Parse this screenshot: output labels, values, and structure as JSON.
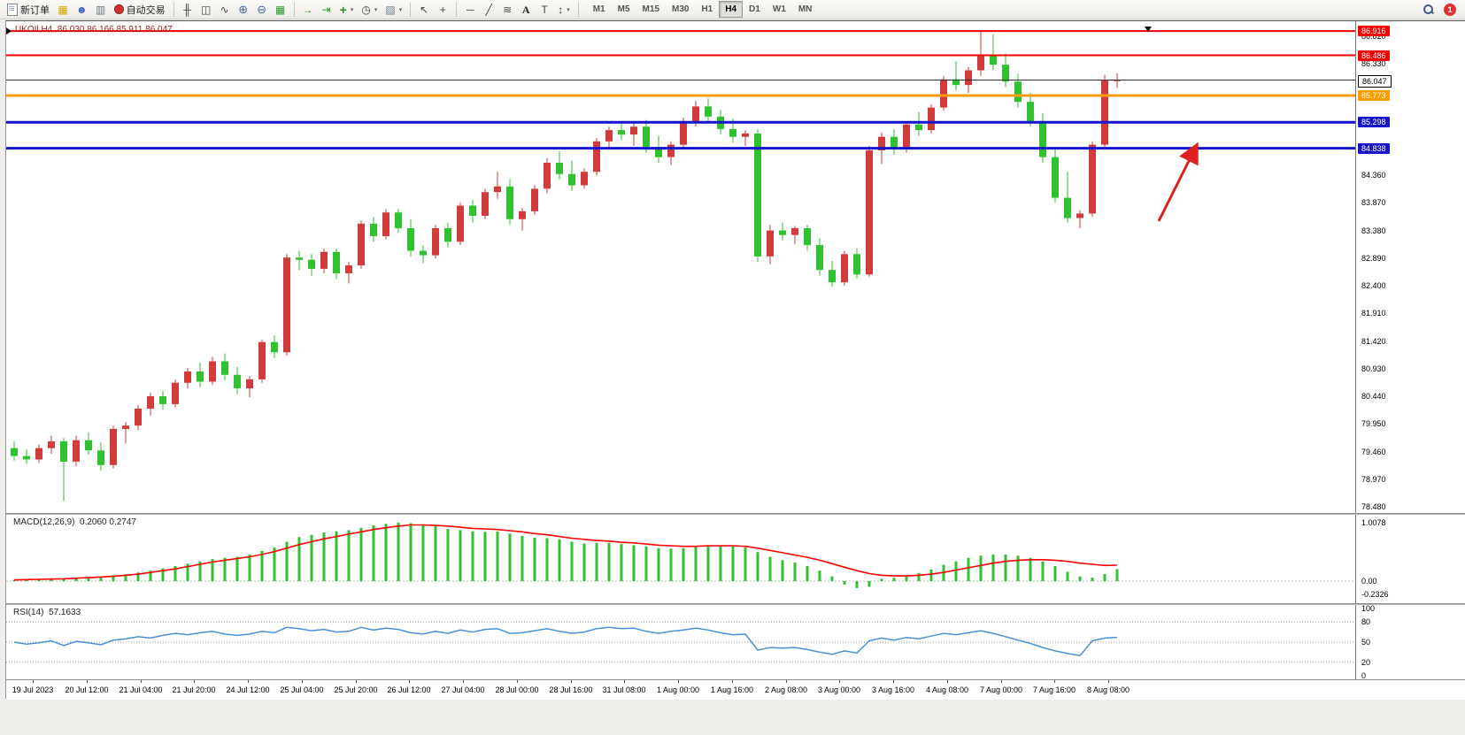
{
  "toolbar": {
    "new_order_label": "新订单",
    "autotrading_label": "自动交易",
    "notification_count": "1",
    "timeframes": [
      {
        "label": "M1",
        "active": false
      },
      {
        "label": "M5",
        "active": false
      },
      {
        "label": "M15",
        "active": false
      },
      {
        "label": "M30",
        "active": false
      },
      {
        "label": "H1",
        "active": false
      },
      {
        "label": "H4",
        "active": true
      },
      {
        "label": "D1",
        "active": false
      },
      {
        "label": "W1",
        "active": false
      },
      {
        "label": "MN",
        "active": false
      }
    ],
    "icons": {
      "chart_stack": "▦",
      "market_watch": "☻",
      "data_window": "▥",
      "bar_chart": "╫",
      "candle_chart": "◫",
      "line_chart": "∿",
      "zoom_in": "⊕",
      "zoom_out": "⊖",
      "tile_windows": "▦",
      "auto_scroll": "→",
      "chart_shift": "⇥",
      "add_indicator": "+",
      "periods": "◷",
      "templates": "▧",
      "cursor": "↖",
      "crosshair": "+",
      "hline_tool": "─",
      "trendline_tool": "╱",
      "fibonacci_tool": "≋",
      "text_tool": "A",
      "label_tool": "T",
      "arrows_tool": "↕",
      "caret": "▾"
    }
  },
  "chart": {
    "symbol_label": "UKOIl,H4",
    "ohlc_label": "86.030 86.166 85.911 86.047",
    "colors": {
      "bull": "#d23b3b",
      "bear": "#2fc12f",
      "line_red": "#f50000",
      "line_blue": "#1414cc",
      "line_orange": "#ff9c00",
      "bid": "#333333",
      "macd_hist": "#2fc12f",
      "macd_signal": "#ff0000",
      "rsi": "#4a90d9",
      "annotation": "#e02020"
    }
  },
  "chart_data": [
    {
      "type": "candlestick",
      "symbol": "UKOIl",
      "timeframe": "H4",
      "current_ohlc": {
        "open": "86.030",
        "high": "86.166",
        "low": "85.911",
        "close": "86.047"
      },
      "ylim": [
        78.37,
        87.09
      ],
      "hlines": [
        {
          "price": 86.916,
          "color": "#f50000",
          "width": 2,
          "badge_bg": "#f50000",
          "badge_fg": "#ffffff"
        },
        {
          "price": 86.486,
          "color": "#f50000",
          "width": 2,
          "badge_bg": "#f50000",
          "badge_fg": "#ffffff"
        },
        {
          "price": 86.047,
          "color": "#333333",
          "width": 1,
          "badge_bg": "#ffffff",
          "badge_fg": "#000000"
        },
        {
          "price": 85.773,
          "color": "#ff9c00",
          "width": 3,
          "badge_bg": "#ff9c00",
          "badge_fg": "#ffffff"
        },
        {
          "price": 85.298,
          "color": "#1414cc",
          "width": 3,
          "badge_bg": "#1414cc",
          "badge_fg": "#ffffff"
        },
        {
          "price": 84.838,
          "color": "#1414cc",
          "width": 3,
          "badge_bg": "#1414cc",
          "badge_fg": "#ffffff"
        }
      ],
      "y_ticks": [
        86.82,
        86.33,
        84.36,
        83.87,
        83.38,
        82.89,
        82.4,
        81.91,
        81.42,
        80.93,
        80.44,
        79.95,
        79.46,
        78.97,
        78.48
      ],
      "x_ticks": [
        "19 Jul 2023",
        "20 Jul 12:00",
        "21 Jul 04:00",
        "21 Jul 20:00",
        "24 Jul 12:00",
        "25 Jul 04:00",
        "25 Jul 20:00",
        "26 Jul 12:00",
        "27 Jul 04:00",
        "28 Jul 00:00",
        "28 Jul 16:00",
        "31 Jul 08:00",
        "1 Aug 00:00",
        "1 Aug 16:00",
        "2 Aug 08:00",
        "3 Aug 00:00",
        "3 Aug 16:00",
        "4 Aug 08:00",
        "7 Aug 00:00",
        "7 Aug 16:00",
        "8 Aug 08:00"
      ],
      "candles": [
        [
          79.52,
          79.64,
          79.3,
          79.38
        ],
        [
          79.38,
          79.5,
          79.24,
          79.32
        ],
        [
          79.32,
          79.58,
          79.26,
          79.52
        ],
        [
          79.52,
          79.74,
          79.42,
          79.64
        ],
        [
          79.64,
          79.7,
          78.58,
          79.28
        ],
        [
          79.28,
          79.74,
          79.2,
          79.66
        ],
        [
          79.66,
          79.8,
          79.4,
          79.48
        ],
        [
          79.48,
          79.62,
          79.12,
          79.22
        ],
        [
          79.22,
          79.92,
          79.16,
          79.86
        ],
        [
          79.86,
          79.98,
          79.6,
          79.92
        ],
        [
          79.92,
          80.28,
          79.84,
          80.22
        ],
        [
          80.22,
          80.5,
          80.1,
          80.44
        ],
        [
          80.44,
          80.54,
          80.2,
          80.3
        ],
        [
          80.3,
          80.74,
          80.24,
          80.68
        ],
        [
          80.68,
          80.94,
          80.58,
          80.88
        ],
        [
          80.88,
          81.04,
          80.6,
          80.7
        ],
        [
          80.7,
          81.14,
          80.64,
          81.06
        ],
        [
          81.06,
          81.2,
          80.72,
          80.82
        ],
        [
          80.82,
          80.96,
          80.48,
          80.58
        ],
        [
          80.58,
          80.8,
          80.42,
          80.74
        ],
        [
          80.74,
          81.44,
          80.68,
          81.4
        ],
        [
          81.4,
          81.52,
          81.12,
          81.22
        ],
        [
          81.22,
          82.96,
          81.16,
          82.9
        ],
        [
          82.9,
          83.02,
          82.68,
          82.86
        ],
        [
          82.86,
          82.96,
          82.58,
          82.7
        ],
        [
          82.7,
          83.06,
          82.62,
          83.0
        ],
        [
          83.0,
          83.06,
          82.52,
          82.62
        ],
        [
          82.62,
          82.82,
          82.44,
          82.76
        ],
        [
          82.76,
          83.56,
          82.7,
          83.5
        ],
        [
          83.5,
          83.62,
          83.18,
          83.28
        ],
        [
          83.28,
          83.76,
          83.22,
          83.7
        ],
        [
          83.7,
          83.76,
          83.34,
          83.42
        ],
        [
          83.42,
          83.58,
          82.92,
          83.02
        ],
        [
          83.02,
          83.12,
          82.8,
          82.94
        ],
        [
          82.94,
          83.48,
          82.88,
          83.42
        ],
        [
          83.42,
          83.52,
          83.08,
          83.18
        ],
        [
          83.18,
          83.88,
          83.12,
          83.82
        ],
        [
          83.82,
          83.92,
          83.52,
          83.64
        ],
        [
          83.64,
          84.12,
          83.58,
          84.06
        ],
        [
          84.06,
          84.42,
          83.94,
          84.16
        ],
        [
          84.16,
          84.3,
          83.48,
          83.58
        ],
        [
          83.58,
          83.78,
          83.38,
          83.72
        ],
        [
          83.72,
          84.18,
          83.66,
          84.12
        ],
        [
          84.12,
          84.66,
          84.04,
          84.58
        ],
        [
          84.58,
          84.78,
          84.28,
          84.38
        ],
        [
          84.38,
          84.62,
          84.08,
          84.18
        ],
        [
          84.18,
          84.48,
          84.12,
          84.42
        ],
        [
          84.42,
          85.02,
          84.36,
          84.96
        ],
        [
          84.96,
          85.22,
          84.86,
          85.16
        ],
        [
          85.16,
          85.32,
          84.98,
          85.08
        ],
        [
          85.08,
          85.28,
          84.88,
          85.22
        ],
        [
          85.22,
          85.34,
          84.76,
          84.86
        ],
        [
          84.86,
          85.06,
          84.58,
          84.68
        ],
        [
          84.68,
          84.96,
          84.54,
          84.9
        ],
        [
          84.9,
          85.38,
          84.84,
          85.32
        ],
        [
          85.32,
          85.68,
          85.22,
          85.58
        ],
        [
          85.58,
          85.72,
          85.3,
          85.4
        ],
        [
          85.4,
          85.52,
          85.08,
          85.18
        ],
        [
          85.18,
          85.36,
          84.94,
          85.04
        ],
        [
          85.04,
          85.16,
          84.88,
          85.1
        ],
        [
          85.1,
          85.18,
          82.82,
          82.92
        ],
        [
          82.92,
          83.48,
          82.78,
          83.38
        ],
        [
          83.38,
          83.52,
          83.2,
          83.3
        ],
        [
          83.3,
          83.46,
          83.14,
          83.42
        ],
        [
          83.42,
          83.48,
          83.02,
          83.12
        ],
        [
          83.12,
          83.24,
          82.58,
          82.68
        ],
        [
          82.68,
          82.84,
          82.38,
          82.46
        ],
        [
          82.46,
          83.02,
          82.4,
          82.96
        ],
        [
          82.96,
          83.06,
          82.52,
          82.6
        ],
        [
          82.6,
          84.88,
          82.56,
          84.8
        ],
        [
          84.8,
          85.12,
          84.56,
          85.04
        ],
        [
          85.04,
          85.18,
          84.72,
          84.82
        ],
        [
          84.82,
          85.32,
          84.76,
          85.26
        ],
        [
          85.26,
          85.48,
          85.06,
          85.16
        ],
        [
          85.16,
          85.62,
          85.1,
          85.56
        ],
        [
          85.56,
          86.12,
          85.5,
          86.06
        ],
        [
          86.06,
          86.38,
          85.86,
          85.96
        ],
        [
          85.96,
          86.28,
          85.82,
          86.22
        ],
        [
          86.22,
          86.92,
          86.12,
          86.48
        ],
        [
          86.48,
          86.86,
          86.22,
          86.32
        ],
        [
          86.32,
          86.52,
          85.92,
          86.02
        ],
        [
          86.02,
          86.16,
          85.56,
          85.66
        ],
        [
          85.66,
          85.82,
          85.22,
          85.32
        ],
        [
          85.32,
          85.46,
          84.58,
          84.68
        ],
        [
          84.68,
          84.82,
          83.88,
          83.96
        ],
        [
          83.96,
          84.42,
          83.52,
          83.6
        ],
        [
          83.6,
          83.74,
          83.42,
          83.68
        ],
        [
          83.68,
          84.96,
          83.62,
          84.9
        ],
        [
          84.9,
          86.14,
          84.84,
          86.04
        ],
        [
          86.03,
          86.166,
          85.911,
          86.047
        ]
      ]
    },
    {
      "type": "bar",
      "name": "MACD",
      "label": "MACD(12,26,9)",
      "values_label": "0.2060 0.2747",
      "value_main": 0.206,
      "value_signal": 0.2747,
      "ylim": [
        -0.382,
        1.145
      ],
      "y_ticks": [
        {
          "v": 1.0078,
          "label": "1.0078"
        },
        {
          "v": 0,
          "label": "0.00"
        },
        {
          "v": -0.2326,
          "label": "-0.2326"
        }
      ],
      "histogram": [
        0.02,
        0.03,
        0.03,
        0.05,
        0.04,
        0.06,
        0.07,
        0.08,
        0.1,
        0.12,
        0.15,
        0.18,
        0.22,
        0.26,
        0.3,
        0.34,
        0.38,
        0.4,
        0.42,
        0.46,
        0.52,
        0.58,
        0.68,
        0.76,
        0.8,
        0.84,
        0.86,
        0.88,
        0.92,
        0.96,
        0.99,
        1.0078,
        1.0,
        0.98,
        0.95,
        0.9,
        0.88,
        0.86,
        0.85,
        0.86,
        0.82,
        0.78,
        0.75,
        0.74,
        0.72,
        0.68,
        0.65,
        0.66,
        0.66,
        0.64,
        0.62,
        0.6,
        0.57,
        0.56,
        0.57,
        0.6,
        0.62,
        0.62,
        0.6,
        0.58,
        0.5,
        0.42,
        0.36,
        0.32,
        0.26,
        0.18,
        0.08,
        -0.06,
        -0.12,
        -0.1,
        0.04,
        0.06,
        0.1,
        0.14,
        0.2,
        0.28,
        0.34,
        0.4,
        0.44,
        0.46,
        0.46,
        0.44,
        0.4,
        0.34,
        0.26,
        0.16,
        0.08,
        0.06,
        0.12,
        0.206
      ],
      "signal": [
        0.02,
        0.025,
        0.03,
        0.035,
        0.04,
        0.05,
        0.06,
        0.07,
        0.085,
        0.1,
        0.12,
        0.15,
        0.18,
        0.21,
        0.25,
        0.29,
        0.33,
        0.36,
        0.39,
        0.42,
        0.46,
        0.51,
        0.57,
        0.63,
        0.68,
        0.73,
        0.77,
        0.81,
        0.85,
        0.89,
        0.92,
        0.95,
        0.97,
        0.97,
        0.96,
        0.95,
        0.93,
        0.91,
        0.9,
        0.89,
        0.87,
        0.85,
        0.82,
        0.8,
        0.77,
        0.74,
        0.72,
        0.7,
        0.69,
        0.67,
        0.66,
        0.64,
        0.62,
        0.61,
        0.6,
        0.6,
        0.61,
        0.61,
        0.61,
        0.6,
        0.57,
        0.53,
        0.49,
        0.45,
        0.41,
        0.36,
        0.3,
        0.24,
        0.18,
        0.13,
        0.1,
        0.09,
        0.09,
        0.1,
        0.12,
        0.15,
        0.19,
        0.23,
        0.27,
        0.31,
        0.34,
        0.36,
        0.37,
        0.37,
        0.36,
        0.34,
        0.31,
        0.29,
        0.27,
        0.2747
      ]
    },
    {
      "type": "line",
      "name": "RSI",
      "label": "RSI(14)",
      "value_label": "57.1633",
      "current_value": 57.1633,
      "ylim": [
        -5.3,
        105.3
      ],
      "levels": [
        80,
        50,
        20
      ],
      "y_ticks": [
        {
          "v": 100,
          "label": "100"
        },
        {
          "v": 80,
          "label": "80"
        },
        {
          "v": 50,
          "label": "50"
        },
        {
          "v": 20,
          "label": "20"
        },
        {
          "v": 0,
          "label": "0"
        }
      ],
      "values": [
        50,
        47,
        49,
        52,
        45,
        51,
        49,
        46,
        53,
        55,
        58,
        56,
        60,
        63,
        61,
        64,
        66,
        62,
        60,
        62,
        66,
        64,
        72,
        70,
        67,
        69,
        65,
        66,
        72,
        68,
        71,
        69,
        64,
        62,
        66,
        63,
        68,
        65,
        69,
        70,
        63,
        64,
        67,
        70,
        66,
        63,
        65,
        70,
        72,
        70,
        71,
        66,
        63,
        66,
        68,
        71,
        68,
        64,
        61,
        62,
        38,
        42,
        41,
        42,
        39,
        35,
        32,
        37,
        34,
        52,
        56,
        53,
        57,
        55,
        59,
        63,
        61,
        64,
        67,
        63,
        58,
        53,
        48,
        42,
        37,
        33,
        30,
        52,
        56,
        57.16
      ]
    }
  ],
  "annotation": {
    "type": "arrow",
    "color": "#e02020"
  }
}
